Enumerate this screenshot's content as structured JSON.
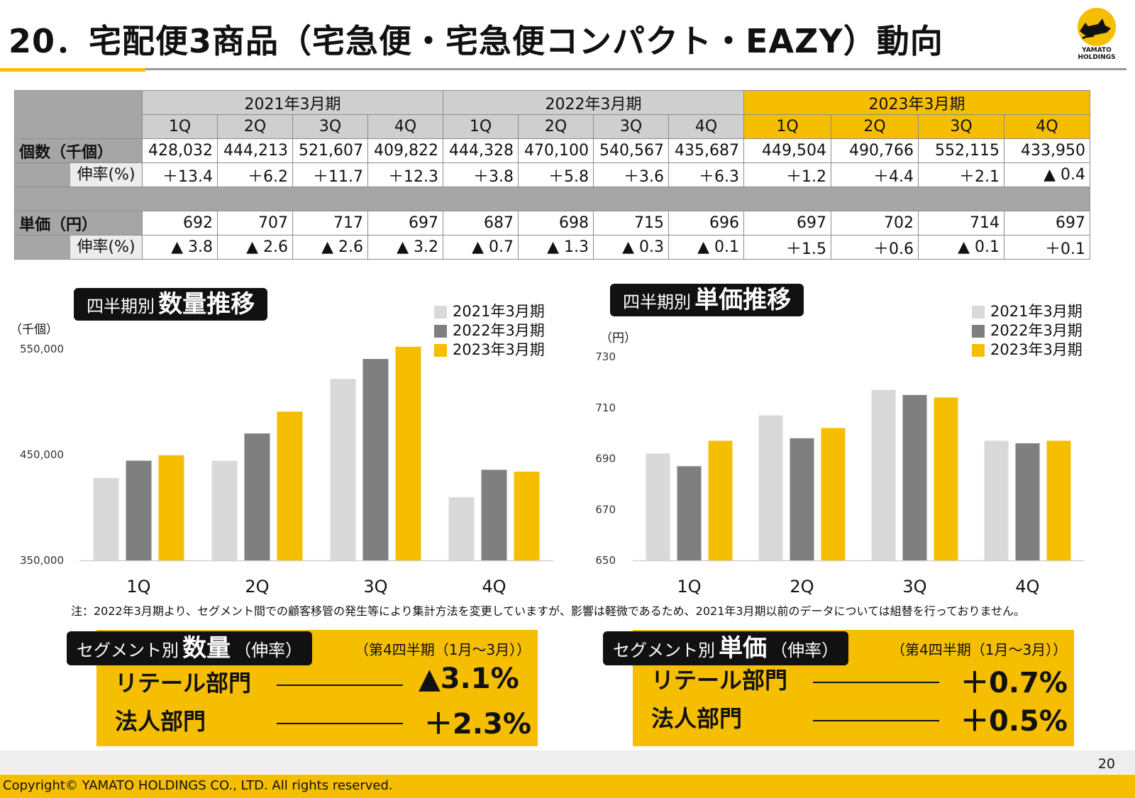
{
  "header": {
    "title": "20．宅配便3商品（宅急便・宅急便コンパクト・EAZY）動向",
    "logo_text_1": "YAMATO",
    "logo_text_2": "HOLDINGS"
  },
  "table": {
    "fiscal_years": [
      "2021年3月期",
      "2022年3月期",
      "2023年3月期"
    ],
    "quarters": [
      "1Q",
      "2Q",
      "3Q",
      "4Q",
      "1Q",
      "2Q",
      "3Q",
      "4Q",
      "1Q",
      "2Q",
      "3Q",
      "4Q"
    ],
    "count_label": "個数（千個）",
    "count_values": [
      "428,032",
      "444,213",
      "521,607",
      "409,822",
      "444,328",
      "470,100",
      "540,567",
      "435,687",
      "449,504",
      "490,766",
      "552,115",
      "433,950"
    ],
    "growth_label": "伸率(%)",
    "count_growth": [
      "＋13.4",
      "＋6.2",
      "＋11.7",
      "＋12.3",
      "＋3.8",
      "＋5.8",
      "＋3.6",
      "＋6.3",
      "＋1.2",
      "＋4.4",
      "＋2.1",
      "▲ 0.4"
    ],
    "price_label": "単価（円）",
    "price_values": [
      "692",
      "707",
      "717",
      "697",
      "687",
      "698",
      "715",
      "696",
      "697",
      "702",
      "714",
      "697"
    ],
    "price_growth": [
      "▲ 3.8",
      "▲ 2.6",
      "▲ 2.6",
      "▲ 3.2",
      "▲ 0.7",
      "▲ 1.3",
      "▲ 0.3",
      "▲ 0.1",
      "＋1.5",
      "＋0.6",
      "▲ 0.1",
      "＋0.1"
    ]
  },
  "colors": {
    "fy2021": "#d9d9d9",
    "fy2022": "#7f7f7f",
    "fy2023": "#f5be00",
    "header_gray": "#cfcfcf",
    "row_gray": "#a6a6a6"
  },
  "chart_data": [
    {
      "type": "bar",
      "title_small": "四半期別",
      "title_large": "数量推移",
      "unit": "（千個）",
      "categories": [
        "1Q",
        "2Q",
        "3Q",
        "4Q"
      ],
      "series": [
        {
          "name": "2021年3月期",
          "values": [
            428032,
            444213,
            521607,
            409822
          ]
        },
        {
          "name": "2022年3月期",
          "values": [
            444328,
            470100,
            540567,
            435687
          ]
        },
        {
          "name": "2023年3月期",
          "values": [
            449504,
            490766,
            552115,
            433950
          ]
        }
      ],
      "ylim": [
        350000,
        550000
      ],
      "yticks": [
        350000,
        450000,
        550000
      ],
      "ytick_labels": [
        "350,000",
        "450,000",
        "550,000"
      ],
      "legend_position": "top-right",
      "grid": false
    },
    {
      "type": "bar",
      "title_small": "四半期別",
      "title_large": "単価推移",
      "unit": "（円）",
      "categories": [
        "1Q",
        "2Q",
        "3Q",
        "4Q"
      ],
      "series": [
        {
          "name": "2021年3月期",
          "values": [
            692,
            707,
            717,
            697
          ]
        },
        {
          "name": "2022年3月期",
          "values": [
            687,
            698,
            715,
            696
          ]
        },
        {
          "name": "2023年3月期",
          "values": [
            697,
            702,
            714,
            697
          ]
        }
      ],
      "ylim": [
        650,
        730
      ],
      "yticks": [
        650,
        670,
        690,
        710,
        730
      ],
      "ytick_labels": [
        "650",
        "670",
        "690",
        "710",
        "730"
      ],
      "legend_position": "top-right",
      "grid": false
    }
  ],
  "note": "注：2022年3月期より、セグメント間での顧客移管の発生等により集計方法を変更していますが、影響は軽微であるため、2021年3月期以前のデータについては組替を行っておりません。",
  "segments": [
    {
      "badge_small": "セグメント別",
      "badge_large": "数量",
      "badge_suffix": "（伸率）",
      "period": "（第4四半期（1月～3月））",
      "rows": [
        {
          "label": "リテール部門",
          "value": "▲3.1%"
        },
        {
          "label": "法人部門",
          "value": "＋2.3%"
        }
      ]
    },
    {
      "badge_small": "セグメント別",
      "badge_large": "単価",
      "badge_suffix": "（伸率）",
      "period": "（第4四半期（1月～3月））",
      "rows": [
        {
          "label": "リテール部門",
          "value": "＋0.7%"
        },
        {
          "label": "法人部門",
          "value": "＋0.5%"
        }
      ]
    }
  ],
  "footer": {
    "page": "20",
    "copyright": "Copyright© YAMATO HOLDINGS CO., LTD. All rights reserved."
  }
}
